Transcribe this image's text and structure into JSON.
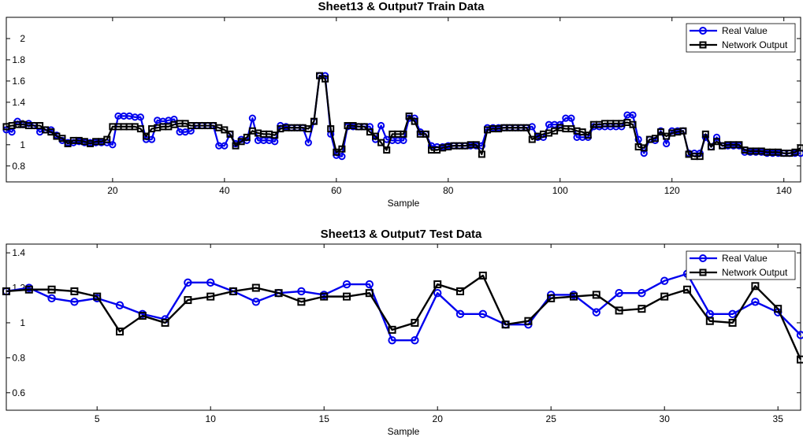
{
  "colors": {
    "real": "#0000ee",
    "network": "#000000",
    "axes": "#000000"
  },
  "chart_data": [
    {
      "type": "line",
      "title": "Sheet13 & Output7 Train Data",
      "xlabel": "Sample",
      "ylabel": "",
      "xlim": [
        1,
        143
      ],
      "ylim": [
        0.65,
        2.2
      ],
      "xticks": [
        20,
        40,
        60,
        80,
        100,
        120,
        140
      ],
      "yticks": [
        0.8,
        1,
        1.2,
        1.4,
        1.6,
        1.8,
        2
      ],
      "ytick_labels": [
        "0.8",
        "1",
        "1.2",
        "1.4",
        "1.6",
        "1.8",
        "2"
      ],
      "grid": false,
      "legend": "top-right",
      "series": [
        {
          "name": "Real Value",
          "color": "#0000ee",
          "marker": "circle",
          "values": [
            1.14,
            1.12,
            1.22,
            1.19,
            1.2,
            1.18,
            1.12,
            1.14,
            1.14,
            1.09,
            1.04,
            1.02,
            1.02,
            1.03,
            1.02,
            1.02,
            1.02,
            1.02,
            1.02,
            1.0,
            1.27,
            1.27,
            1.27,
            1.26,
            1.26,
            1.05,
            1.05,
            1.23,
            1.22,
            1.23,
            1.24,
            1.12,
            1.12,
            1.13,
            1.18,
            1.18,
            1.18,
            1.18,
            0.99,
            0.99,
            1.1,
            1.01,
            1.05,
            1.04,
            1.25,
            1.04,
            1.04,
            1.04,
            1.03,
            1.18,
            1.17,
            1.16,
            1.16,
            1.16,
            1.02,
            1.22,
            1.65,
            1.65,
            1.1,
            0.9,
            0.89,
            1.17,
            1.17,
            1.17,
            1.17,
            1.17,
            1.05,
            1.18,
            1.05,
            1.04,
            1.04,
            1.04,
            1.25,
            1.25,
            1.12,
            1.1,
            0.99,
            0.98,
            0.98,
            0.99,
            0.99,
            0.99,
            0.99,
            0.99,
            0.99,
            0.99,
            1.16,
            1.16,
            1.16,
            1.16,
            1.16,
            1.16,
            1.16,
            1.16,
            1.17,
            1.07,
            1.07,
            1.19,
            1.19,
            1.19,
            1.25,
            1.25,
            1.07,
            1.07,
            1.07,
            1.17,
            1.17,
            1.17,
            1.17,
            1.17,
            1.17,
            1.28,
            1.28,
            1.05,
            0.92,
            1.05,
            1.04,
            1.13,
            1.01,
            1.13,
            1.13,
            1.13,
            0.92,
            0.92,
            0.92,
            1.07,
            0.98,
            1.07,
            0.99,
            0.99,
            0.99,
            0.99,
            0.93,
            0.93,
            0.93,
            0.93,
            0.92,
            0.92,
            0.92,
            0.92,
            0.92,
            0.92,
            0.92
          ]
        },
        {
          "name": "Network Output",
          "color": "#000000",
          "marker": "square",
          "values": [
            1.17,
            1.18,
            1.19,
            1.19,
            1.18,
            1.18,
            1.18,
            1.14,
            1.12,
            1.08,
            1.06,
            1.01,
            1.04,
            1.04,
            1.03,
            1.01,
            1.03,
            1.03,
            1.05,
            1.17,
            1.17,
            1.17,
            1.17,
            1.17,
            1.15,
            1.08,
            1.15,
            1.16,
            1.17,
            1.17,
            1.19,
            1.2,
            1.2,
            1.18,
            1.18,
            1.18,
            1.18,
            1.18,
            1.16,
            1.14,
            1.1,
            0.99,
            1.03,
            1.07,
            1.13,
            1.11,
            1.1,
            1.1,
            1.09,
            1.15,
            1.16,
            1.16,
            1.16,
            1.16,
            1.15,
            1.22,
            1.65,
            1.62,
            1.15,
            0.93,
            0.96,
            1.18,
            1.18,
            1.17,
            1.17,
            1.12,
            1.08,
            1.02,
            0.95,
            1.1,
            1.1,
            1.1,
            1.27,
            1.22,
            1.1,
            1.1,
            0.95,
            0.95,
            0.97,
            0.98,
            0.99,
            0.99,
            0.99,
            1.0,
            1.0,
            0.91,
            1.14,
            1.15,
            1.15,
            1.16,
            1.16,
            1.16,
            1.16,
            1.16,
            1.05,
            1.08,
            1.1,
            1.11,
            1.13,
            1.16,
            1.15,
            1.15,
            1.13,
            1.12,
            1.09,
            1.19,
            1.19,
            1.2,
            1.2,
            1.2,
            1.2,
            1.21,
            1.19,
            0.98,
            0.97,
            1.05,
            1.06,
            1.12,
            1.08,
            1.11,
            1.12,
            1.13,
            0.91,
            0.89,
            0.89,
            1.1,
            0.98,
            1.03,
            0.99,
            1.0,
            1.0,
            1.0,
            0.95,
            0.94,
            0.94,
            0.94,
            0.93,
            0.93,
            0.93,
            0.92,
            0.92,
            0.93,
            0.97
          ]
        }
      ]
    },
    {
      "type": "line",
      "title": "Sheet13 & Output7 Test Data",
      "xlabel": "Sample",
      "ylabel": "",
      "xlim": [
        1,
        36
      ],
      "ylim": [
        0.5,
        1.45
      ],
      "xticks": [
        5,
        10,
        15,
        20,
        25,
        30,
        35
      ],
      "yticks": [
        0.6,
        0.8,
        1,
        1.2,
        1.4
      ],
      "ytick_labels": [
        "0.6",
        "0.8",
        "1",
        "1.2",
        "1.4"
      ],
      "grid": false,
      "legend": "top-right",
      "series": [
        {
          "name": "Real Value",
          "color": "#0000ee",
          "marker": "circle",
          "values": [
            1.18,
            1.2,
            1.14,
            1.12,
            1.14,
            1.1,
            1.05,
            1.02,
            1.23,
            1.23,
            1.18,
            1.12,
            1.17,
            1.18,
            1.16,
            1.22,
            1.22,
            0.9,
            0.9,
            1.17,
            1.05,
            1.05,
            0.99,
            0.99,
            1.16,
            1.16,
            1.06,
            1.17,
            1.17,
            1.24,
            1.28,
            1.05,
            1.05,
            1.12,
            1.06,
            0.93
          ]
        },
        {
          "name": "Network Output",
          "color": "#000000",
          "marker": "square",
          "values": [
            1.18,
            1.19,
            1.19,
            1.18,
            1.15,
            0.95,
            1.04,
            1.0,
            1.13,
            1.15,
            1.18,
            1.2,
            1.17,
            1.12,
            1.15,
            1.15,
            1.17,
            0.96,
            1.0,
            1.22,
            1.18,
            1.27,
            0.99,
            1.01,
            1.14,
            1.15,
            1.16,
            1.07,
            1.08,
            1.15,
            1.19,
            1.01,
            1.0,
            1.21,
            1.08,
            0.79
          ]
        }
      ]
    }
  ]
}
